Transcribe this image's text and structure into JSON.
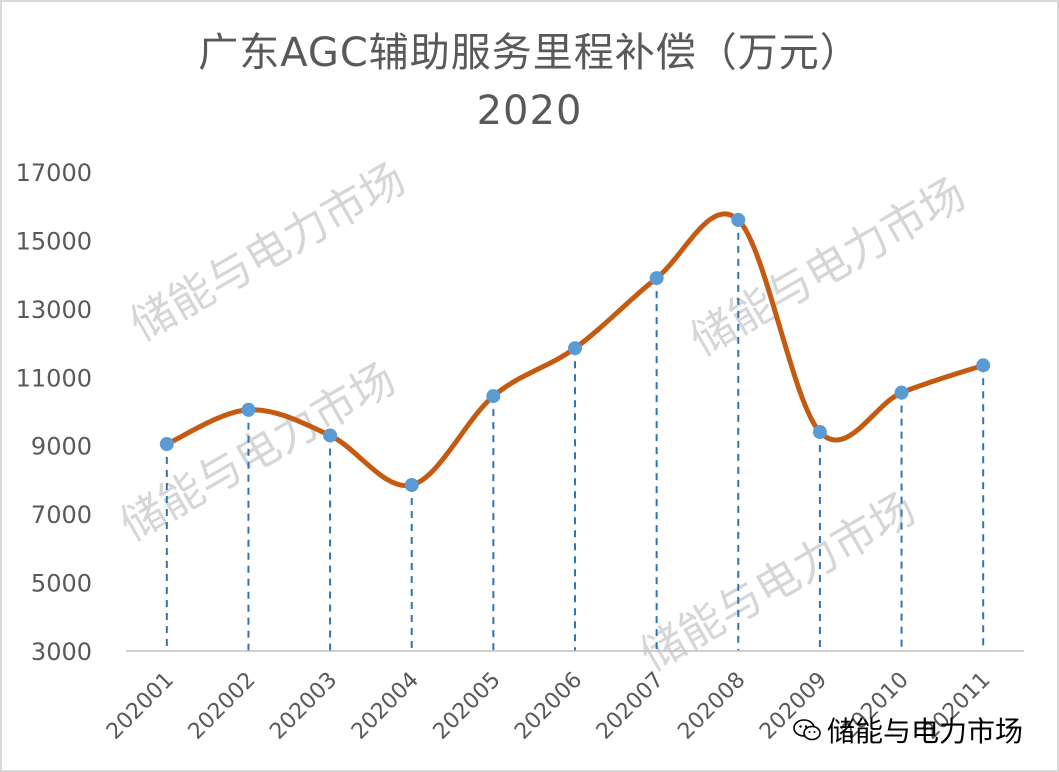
{
  "chart_data": {
    "type": "line",
    "title": "广东AGC辅助服务里程补偿（万元）",
    "subtitle": "2020",
    "xlabel": "",
    "ylabel": "",
    "categories": [
      "202001",
      "202002",
      "202003",
      "202004",
      "202005",
      "202006",
      "202007",
      "202008",
      "202009",
      "202010",
      "202011"
    ],
    "series": [
      {
        "values": [
          9050,
          10050,
          9300,
          7850,
          10450,
          11850,
          13900,
          15600,
          9400,
          10550,
          11350
        ],
        "line_color": "#c55a11",
        "marker_color": "#5b9bd5",
        "smooth": true
      }
    ],
    "ylim": [
      3000,
      17000
    ],
    "yticks": [
      "17000",
      "15000",
      "13000",
      "11000",
      "9000",
      "7000",
      "5000",
      "3000"
    ],
    "drop_lines": true,
    "drop_line_color": "#2e75b6",
    "grid": false,
    "legend": "none"
  },
  "watermark": {
    "text": "储能与电力市场",
    "color": "#d6d6d6"
  },
  "footer": {
    "icon": "wechat-icon",
    "text": "储能与电力市场"
  }
}
